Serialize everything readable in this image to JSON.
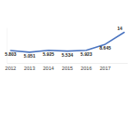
{
  "chart_data": {
    "type": "line",
    "categories": [
      "2012",
      "2013",
      "2014",
      "2015",
      "2016",
      "2017",
      null
    ],
    "values": [
      5.803,
      5.051,
      5.925,
      5.534,
      5.923,
      8.645,
      14
    ],
    "color": "#4a74c0",
    "ylim": [
      0,
      16
    ],
    "data_labels": true,
    "tick_labels": "x",
    "grid": false
  }
}
